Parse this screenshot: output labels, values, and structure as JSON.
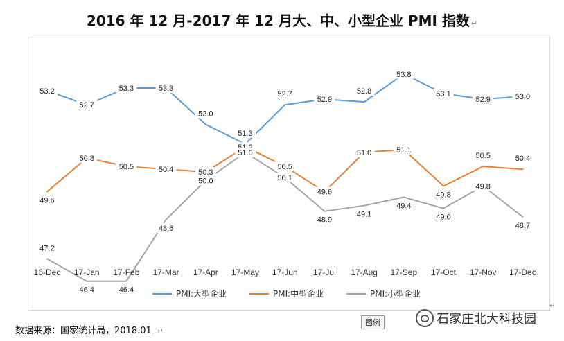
{
  "title": "2016 年 12 月-2017 年 12 月大、中、小型企业 PMI 指数",
  "footer": {
    "source": "数据来源：国家统计局，2018.01"
  },
  "legend_tag": "图例",
  "watermark": {
    "text": "石家庄北大科技园",
    "icon": "wechat-icon"
  },
  "colors": {
    "large": "#5b9bd5",
    "medium": "#ed7d31",
    "small": "#a5a5a5"
  },
  "chart_data": {
    "type": "line",
    "title": "2016 年 12 月-2017 年 12 月大、中、小型企业 PMI 指数",
    "categories": [
      "16-Dec",
      "17-Jan",
      "17-Feb",
      "17-Mar",
      "17-Apr",
      "17-May",
      "17-Jun",
      "17-Jul",
      "17-Aug",
      "17-Sep",
      "17-Oct",
      "17-Nov",
      "17-Dec"
    ],
    "series": [
      {
        "name": "PMI:大型企业",
        "color": "#5b9bd5",
        "values": [
          53.2,
          52.7,
          53.3,
          53.3,
          52.0,
          51.3,
          52.7,
          52.9,
          52.8,
          53.8,
          53.1,
          52.9,
          53.0
        ]
      },
      {
        "name": "PMI:中型企业",
        "color": "#ed7d31",
        "values": [
          49.6,
          50.8,
          50.5,
          50.4,
          50.3,
          51.2,
          50.5,
          49.6,
          51.0,
          51.1,
          49.8,
          50.5,
          50.4
        ]
      },
      {
        "name": "PMI:小型企业",
        "color": "#a5a5a5",
        "values": [
          47.2,
          46.4,
          46.4,
          48.6,
          50.0,
          51.0,
          50.1,
          48.9,
          49.1,
          49.4,
          49.0,
          49.8,
          48.7
        ]
      }
    ],
    "legend_position": "bottom",
    "grid": false
  }
}
